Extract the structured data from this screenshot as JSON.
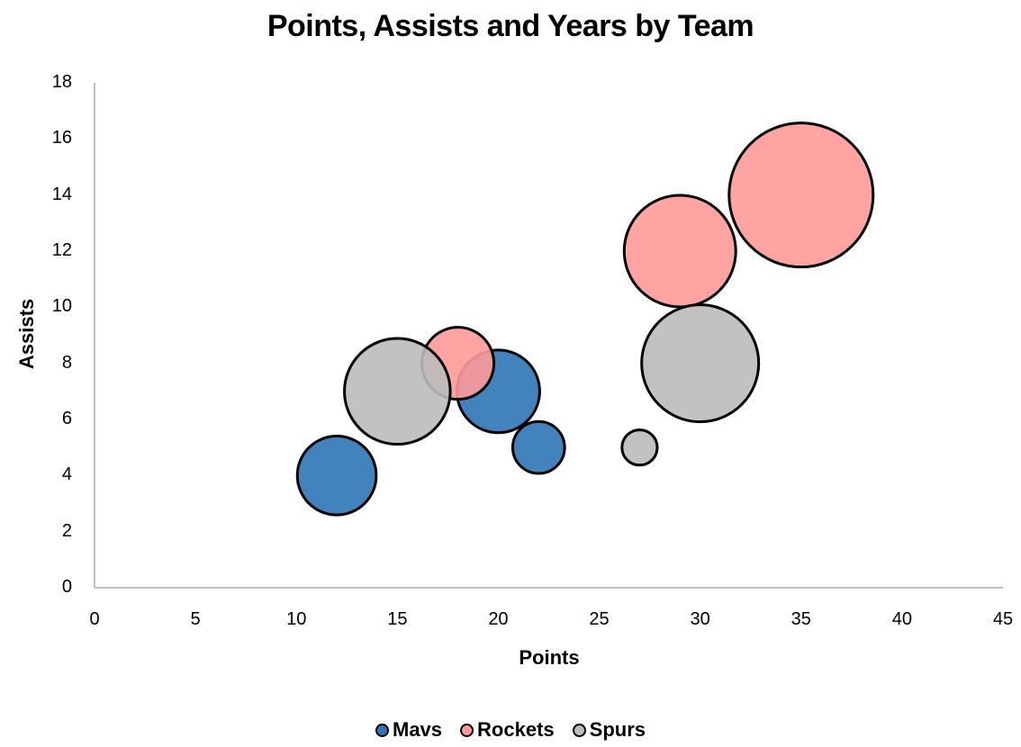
{
  "chart_data": {
    "type": "bubble",
    "title": "Points, Assists and Years by Team",
    "xlabel": "Points",
    "ylabel": "Assists",
    "xlim": [
      0,
      45
    ],
    "ylim": [
      0,
      18
    ],
    "x_ticks": [
      0,
      5,
      10,
      15,
      20,
      25,
      30,
      35,
      40,
      45
    ],
    "y_ticks": [
      0,
      2,
      4,
      6,
      8,
      10,
      12,
      14,
      16,
      18
    ],
    "grid": false,
    "legend_position": "bottom",
    "size_label": "Years",
    "series": [
      {
        "name": "Mavs",
        "color": "#2E75B6",
        "points": [
          {
            "x": 12,
            "y": 4,
            "size": 3
          },
          {
            "x": 20,
            "y": 7,
            "size": 3.3
          },
          {
            "x": 22,
            "y": 5,
            "size": 1.3
          }
        ]
      },
      {
        "name": "Rockets",
        "color": "#FF9999",
        "points": [
          {
            "x": 18,
            "y": 8,
            "size": 2.5
          },
          {
            "x": 29,
            "y": 12,
            "size": 6
          },
          {
            "x": 35,
            "y": 14,
            "size": 10
          }
        ]
      },
      {
        "name": "Spurs",
        "color": "#BBBBBB",
        "points": [
          {
            "x": 15,
            "y": 7,
            "size": 5.4
          },
          {
            "x": 30,
            "y": 8,
            "size": 6.6
          },
          {
            "x": 27,
            "y": 5,
            "size": 0.6
          }
        ]
      }
    ]
  }
}
